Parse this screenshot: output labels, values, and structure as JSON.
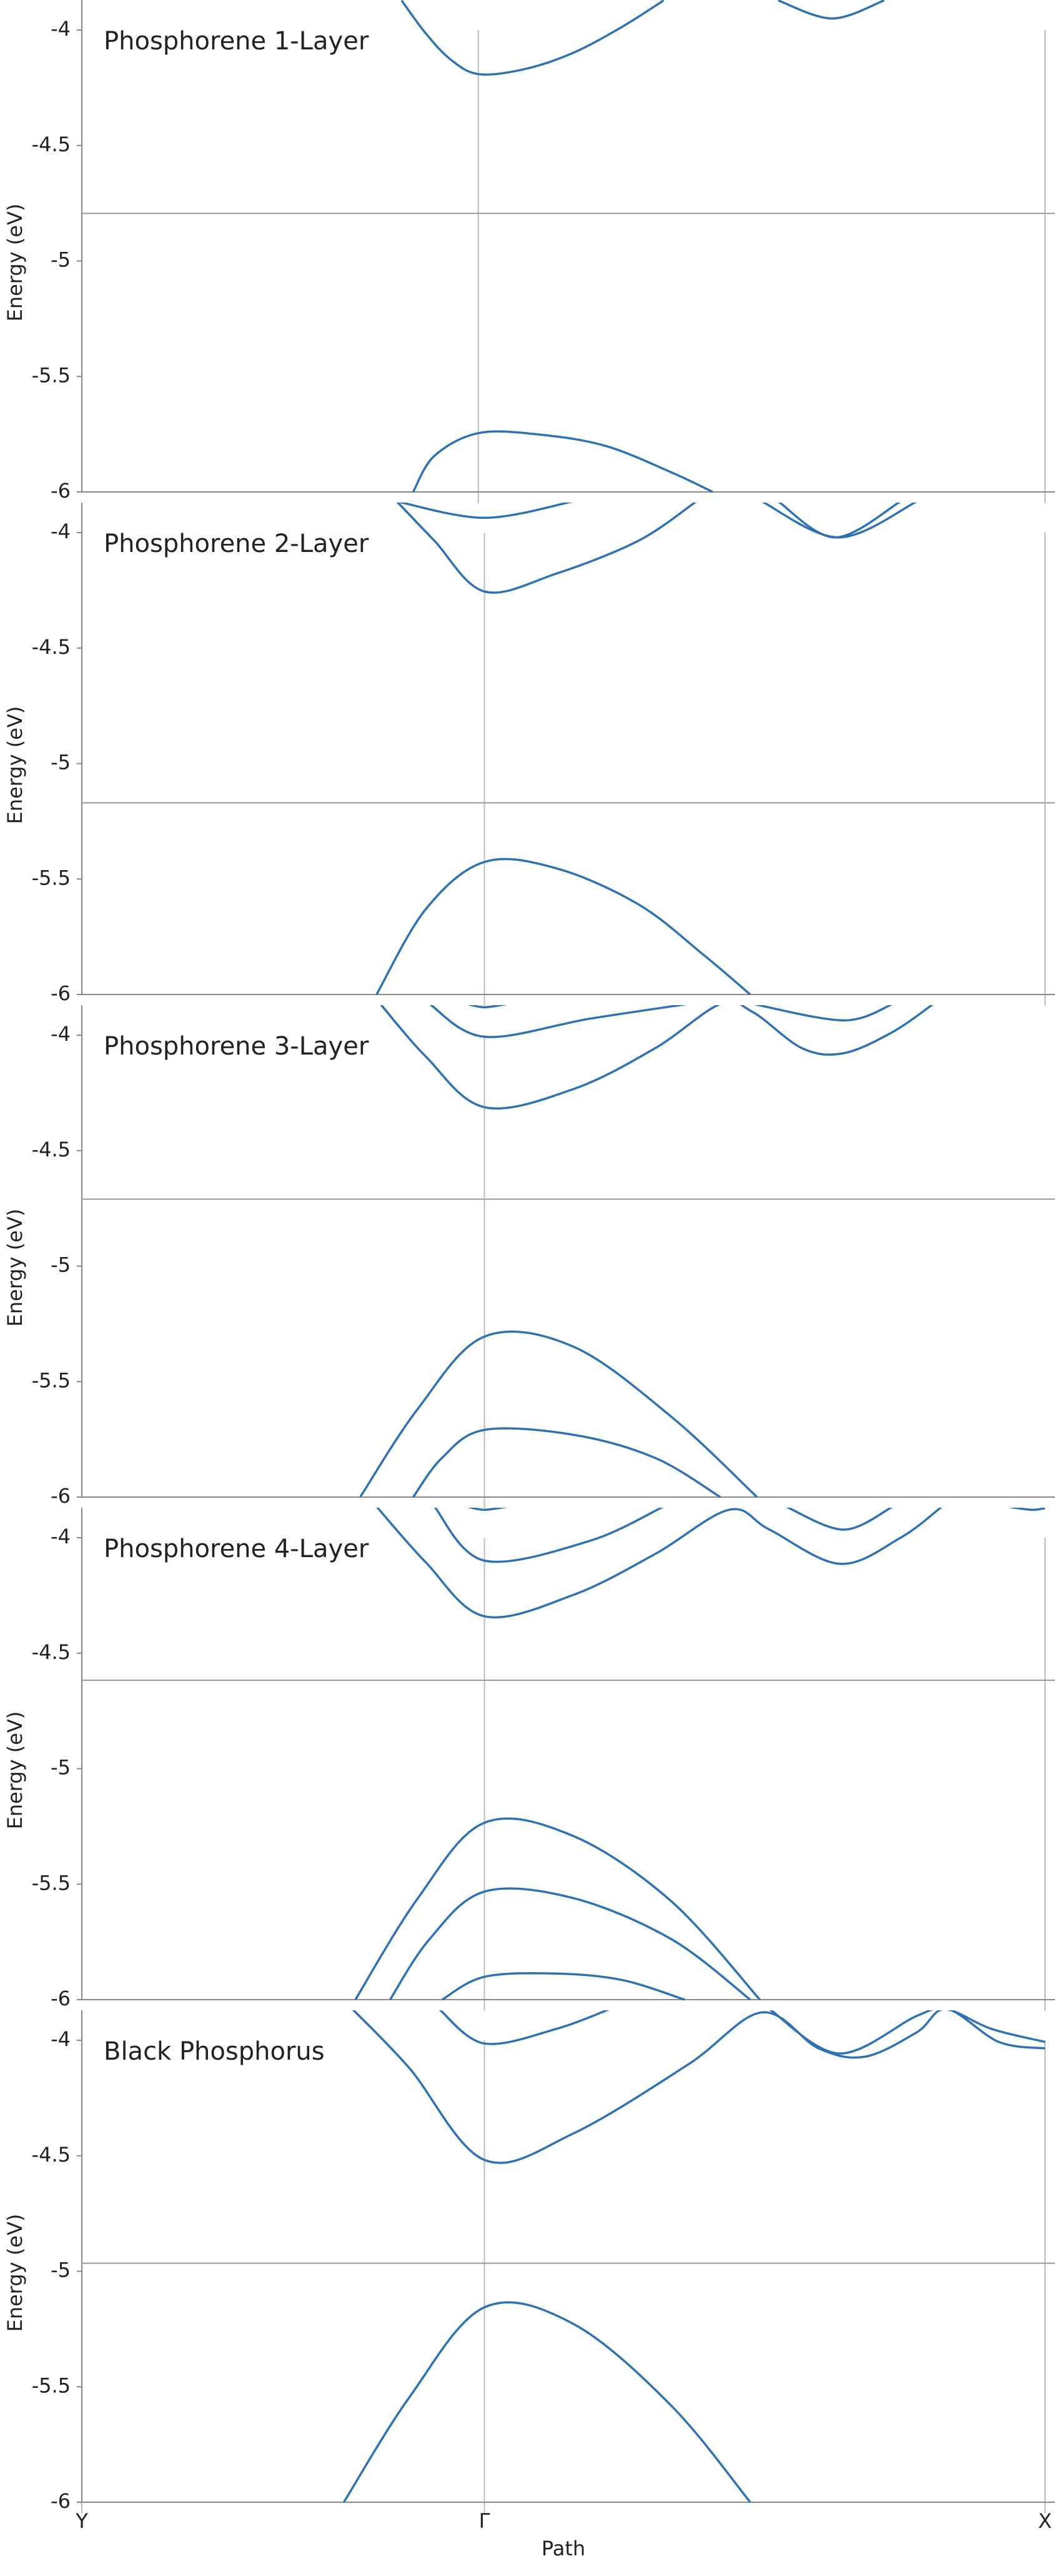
{
  "chart_data": [
    {
      "type": "line",
      "title": "Phosphorene 1-Layer",
      "ylabel": "Energy (eV)",
      "color": "#2f72b4",
      "xlim": [
        0,
        1
      ],
      "ylim": [
        -6,
        -3.87
      ],
      "yticks": [
        -4,
        -4.5,
        -5,
        -5.5,
        -6
      ],
      "vlines": [
        0.4116,
        1
      ],
      "reference_line": -4.794,
      "series": [
        {
          "x": [
            0.332,
            0.357,
            0.383,
            0.412,
            0.459,
            0.51,
            0.561,
            0.604
          ],
          "values": [
            -3.872,
            -4.014,
            -4.128,
            -4.191,
            -4.17,
            -4.099,
            -3.986,
            -3.872
          ]
        },
        {
          "x": [
            0.723,
            0.779,
            0.833
          ],
          "values": [
            -3.872,
            -3.95,
            -3.872
          ]
        },
        {
          "x": [
            0.344,
            0.366,
            0.412,
            0.476,
            0.544,
            0.612,
            0.655
          ],
          "values": [
            -6.0,
            -5.844,
            -5.745,
            -5.752,
            -5.801,
            -5.915,
            -6.0
          ]
        }
      ]
    },
    {
      "type": "line",
      "title": "Phosphorene 2-Layer",
      "ylabel": "Energy (eV)",
      "color": "#2f72b4",
      "xlim": [
        0,
        1
      ],
      "ylim": [
        -6,
        -3.87
      ],
      "yticks": [
        -4,
        -4.5,
        -5,
        -5.5,
        -6
      ],
      "vlines": [
        0.418,
        1
      ],
      "reference_line": -5.17,
      "series": [
        {
          "x": [
            0.327,
            0.418,
            0.51
          ],
          "values": [
            -3.865,
            -3.936,
            -3.865
          ]
        },
        {
          "x": [
            0.327,
            0.366,
            0.418,
            0.493,
            0.578,
            0.638
          ],
          "values": [
            -3.865,
            -4.035,
            -4.255,
            -4.177,
            -4.035,
            -3.865
          ]
        },
        {
          "x": [
            0.706,
            0.786,
            0.867
          ],
          "values": [
            -3.865,
            -4.021,
            -3.865
          ]
        },
        {
          "x": [
            0.723,
            0.782,
            0.85
          ],
          "values": [
            -3.865,
            -4.021,
            -3.865
          ]
        },
        {
          "x": [
            0.306,
            0.357,
            0.418,
            0.493,
            0.578,
            0.646,
            0.694
          ],
          "values": [
            -6.0,
            -5.631,
            -5.426,
            -5.454,
            -5.61,
            -5.83,
            -6.0
          ]
        }
      ]
    },
    {
      "type": "line",
      "title": "Phosphorene 3-Layer",
      "ylabel": "Energy (eV)",
      "color": "#2f72b4",
      "xlim": [
        0,
        1
      ],
      "ylim": [
        -6,
        -3.87
      ],
      "yticks": [
        -4,
        -4.5,
        -5,
        -5.5,
        -6
      ],
      "vlines": [
        0.418
      ],
      "reference_line": -4.71,
      "series": [
        {
          "x": [
            0.4,
            0.418,
            0.442
          ],
          "values": [
            -3.865,
            -3.879,
            -3.865
          ]
        },
        {
          "x": [
            0.361,
            0.418,
            0.527,
            0.629
          ],
          "values": [
            -3.865,
            -4.007,
            -3.929,
            -3.865
          ]
        },
        {
          "x": [
            0.31,
            0.357,
            0.418,
            0.51,
            0.595,
            0.663,
            0.697,
            0.748,
            0.791,
            0.842,
            0.884
          ],
          "values": [
            -3.865,
            -4.092,
            -4.312,
            -4.234,
            -4.057,
            -3.865,
            -3.901,
            -4.057,
            -4.078,
            -3.986,
            -3.865
          ]
        },
        {
          "x": [
            0.697,
            0.791,
            0.842
          ],
          "values": [
            -3.865,
            -3.936,
            -3.865
          ]
        },
        {
          "x": [
            0.289,
            0.349,
            0.418,
            0.51,
            0.612,
            0.701
          ],
          "values": [
            -6.0,
            -5.617,
            -5.305,
            -5.348,
            -5.652,
            -6.0
          ]
        },
        {
          "x": [
            0.344,
            0.374,
            0.418,
            0.51,
            0.595,
            0.663
          ],
          "values": [
            -6.0,
            -5.83,
            -5.709,
            -5.73,
            -5.83,
            -6.0
          ]
        }
      ]
    },
    {
      "type": "line",
      "title": "Phosphorene 4-Layer",
      "ylabel": "Energy (eV)",
      "color": "#2f72b4",
      "xlim": [
        0,
        1
      ],
      "ylim": [
        -6,
        -3.87
      ],
      "yticks": [
        -4,
        -4.5,
        -5,
        -5.5,
        -6
      ],
      "vlines": [
        0.418,
        1
      ],
      "reference_line": -4.617,
      "series": [
        {
          "x": [
            0.4,
            0.418,
            0.442
          ],
          "values": [
            -3.865,
            -3.879,
            -3.865
          ]
        },
        {
          "x": [
            0.366,
            0.418,
            0.527,
            0.604
          ],
          "values": [
            -3.865,
            -4.099,
            -4.014,
            -3.865
          ]
        },
        {
          "x": [
            0.306,
            0.357,
            0.418,
            0.51,
            0.595,
            0.672,
            0.714,
            0.787,
            0.85,
            0.893
          ],
          "values": [
            -3.865,
            -4.106,
            -4.34,
            -4.248,
            -4.071,
            -3.879,
            -3.965,
            -4.113,
            -4.0,
            -3.865
          ]
        },
        {
          "x": [
            0.731,
            0.791,
            0.842
          ],
          "values": [
            -3.865,
            -3.965,
            -3.865
          ]
        },
        {
          "x": [
            0.961,
            0.986,
            1.0
          ],
          "values": [
            -3.865,
            -3.879,
            -3.872
          ]
        },
        {
          "x": [
            0.284,
            0.349,
            0.418,
            0.51,
            0.612,
            0.704
          ],
          "values": [
            -6.0,
            -5.56,
            -5.234,
            -5.291,
            -5.574,
            -6.0
          ]
        },
        {
          "x": [
            0.32,
            0.361,
            0.418,
            0.51,
            0.612,
            0.694
          ],
          "values": [
            -6.0,
            -5.738,
            -5.532,
            -5.56,
            -5.738,
            -6.0
          ]
        },
        {
          "x": [
            0.374,
            0.418,
            0.493,
            0.561,
            0.626
          ],
          "values": [
            -6.0,
            -5.901,
            -5.887,
            -5.915,
            -6.0
          ]
        }
      ]
    },
    {
      "type": "line",
      "title": "Black Phosphorus",
      "ylabel": "Energy (eV)",
      "xlabel": "Path",
      "color": "#2f72b4",
      "xlim": [
        0,
        1
      ],
      "ylim": [
        -6,
        -3.87
      ],
      "yticks": [
        -4,
        -4.5,
        -5,
        -5.5,
        -6
      ],
      "xticks": [
        {
          "value": 0,
          "label": "Y"
        },
        {
          "value": 0.418,
          "label": "Γ"
        },
        {
          "value": 1,
          "label": "X"
        }
      ],
      "reference_line": -4.965,
      "series": [
        {
          "x": [
            0.371,
            0.418,
            0.493,
            0.548
          ],
          "values": [
            -3.865,
            -4.014,
            -3.95,
            -3.865
          ]
        },
        {
          "x": [
            0.281,
            0.34,
            0.418,
            0.51,
            0.629,
            0.706,
            0.765,
            0.813,
            0.867,
            0.898,
            0.952,
            1.0
          ],
          "values": [
            -3.865,
            -4.12,
            -4.518,
            -4.404,
            -4.106,
            -3.879,
            -4.035,
            -4.071,
            -3.965,
            -3.865,
            -4.007,
            -4.035
          ]
        },
        {
          "x": [
            0.714,
            0.786,
            0.867,
            0.898,
            0.944,
            1.0
          ],
          "values": [
            -3.865,
            -4.057,
            -3.894,
            -3.865,
            -3.95,
            -4.007
          ]
        },
        {
          "x": [
            0.272,
            0.34,
            0.418,
            0.51,
            0.612,
            0.694
          ],
          "values": [
            -6.0,
            -5.546,
            -5.156,
            -5.227,
            -5.582,
            -6.0
          ]
        }
      ]
    }
  ]
}
